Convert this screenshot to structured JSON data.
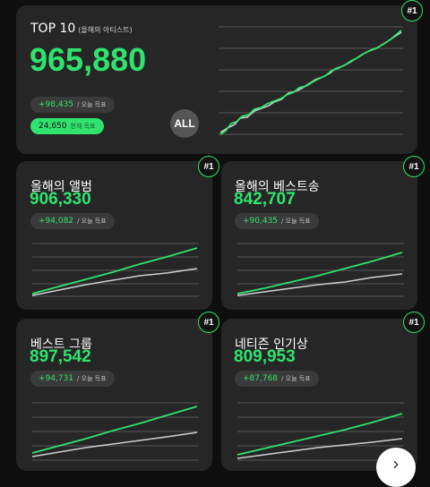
{
  "top": {
    "title": "TOP 10",
    "subtitle": "(올해의 아티스트)",
    "count": "965,880",
    "today_delta": "+98,435",
    "today_label": "/ 오늘 득표",
    "current_count": "24,650",
    "current_label": "현재 득표",
    "all_button": "ALL",
    "rank": "#1"
  },
  "cards": [
    {
      "title": "올해의 앨범",
      "count": "906,330",
      "delta": "+94,082",
      "delta_label": "/ 오늘 득표",
      "rank": "#1"
    },
    {
      "title": "올해의 베스트송",
      "count": "842,707",
      "delta": "+90,435",
      "delta_label": "/ 오늘 득표",
      "rank": "#1"
    },
    {
      "title": "베스트 그룹",
      "count": "897,542",
      "delta": "+94,731",
      "delta_label": "/ 오늘 득표",
      "rank": "#1"
    },
    {
      "title": "네티즌 인기상",
      "count": "809,953",
      "delta": "+87,768",
      "delta_label": "/ 오늘 득표",
      "rank": "#1"
    }
  ],
  "colors": {
    "accent": "#2fe36e",
    "secondary_line": "#d0d0d0",
    "card": "#262626"
  },
  "fab_icon": "chevron-right-icon"
}
